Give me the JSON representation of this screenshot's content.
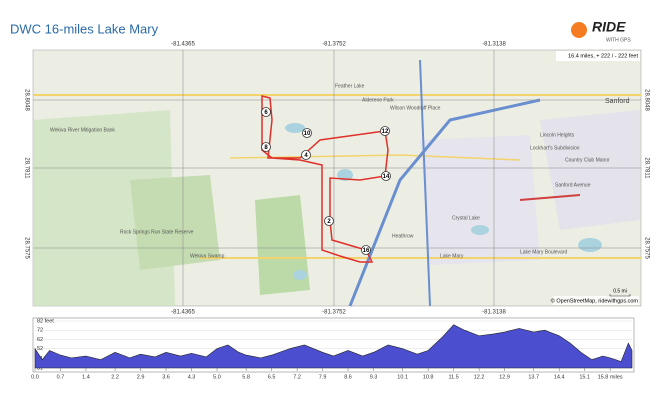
{
  "header": {
    "title": "DWC  16-miles Lake Mary",
    "logo": "RIDE",
    "logo_sub": "WITH GPS"
  },
  "map": {
    "stats": "16.4 miles, + 222 / - 222 feet",
    "lon_labels": [
      "-81.4365",
      "-81.3752",
      "-81.3138"
    ],
    "lat_labels": [
      "28.8048",
      "28.7811",
      "28.7575"
    ],
    "markers": [
      "6",
      "8",
      "10",
      "4",
      "12",
      "14",
      "2",
      "16"
    ],
    "places": [
      "Feather Lake",
      "Alderene Park",
      "Sanford",
      "Wekiva River Mitigation Bank",
      "Rock Springs Run State Reserve",
      "Country Club Manor",
      "Crystal Lake",
      "Lake Mary",
      "Heathrow",
      "Lake Mary Boulevard",
      "Wekiva Swamp",
      "Lincoln Heights",
      "Lockhart's Subdivision",
      "Wilson Woodruff Place",
      "Sanford Avenue"
    ],
    "attribution": "© OpenStreetMap, ridewithgps.com",
    "scale": "0.5 mi"
  },
  "chart_data": {
    "type": "area",
    "color": "#4b4fcf",
    "x": [
      0,
      0.2,
      0.4,
      0.7,
      1.0,
      1.4,
      1.8,
      2.2,
      2.6,
      2.9,
      3.3,
      3.6,
      4.0,
      4.3,
      4.7,
      5.0,
      5.3,
      5.6,
      5.8,
      6.2,
      6.5,
      7.0,
      7.4,
      7.9,
      8.2,
      8.6,
      9.0,
      9.3,
      9.7,
      10.1,
      10.5,
      10.8,
      11.2,
      11.5,
      11.8,
      12.2,
      12.6,
      12.9,
      13.3,
      13.7,
      14.0,
      14.4,
      14.7,
      15.0,
      15.3,
      15.6,
      15.8,
      16.1,
      16.3,
      16.4
    ],
    "values": [
      52,
      40,
      50,
      45,
      42,
      44,
      40,
      48,
      42,
      46,
      43,
      48,
      44,
      47,
      43,
      52,
      56,
      48,
      45,
      42,
      45,
      52,
      56,
      48,
      44,
      50,
      44,
      48,
      56,
      52,
      46,
      50,
      65,
      78,
      72,
      66,
      68,
      70,
      74,
      70,
      72,
      66,
      58,
      48,
      40,
      44,
      42,
      38,
      58,
      50
    ],
    "xlim": [
      0,
      16.4
    ],
    "ylim": [
      31,
      82
    ],
    "xticks": [
      {
        "value": 0,
        "label": "0.0"
      },
      0.7,
      1.4,
      2.2,
      2.9,
      3.6,
      4.3,
      {
        "value": 5,
        "label": "5.0"
      },
      5.8,
      6.5,
      7.2,
      7.9,
      8.6,
      9.3,
      10.1,
      10.8,
      11.5,
      12.2,
      12.9,
      13.7,
      14.4,
      15.1,
      {
        "value": 15.8,
        "label": "15.8 miles"
      }
    ],
    "yticks": [
      {
        "value": 82,
        "label": "82 feet"
      },
      72,
      62,
      52,
      41,
      31
    ]
  }
}
